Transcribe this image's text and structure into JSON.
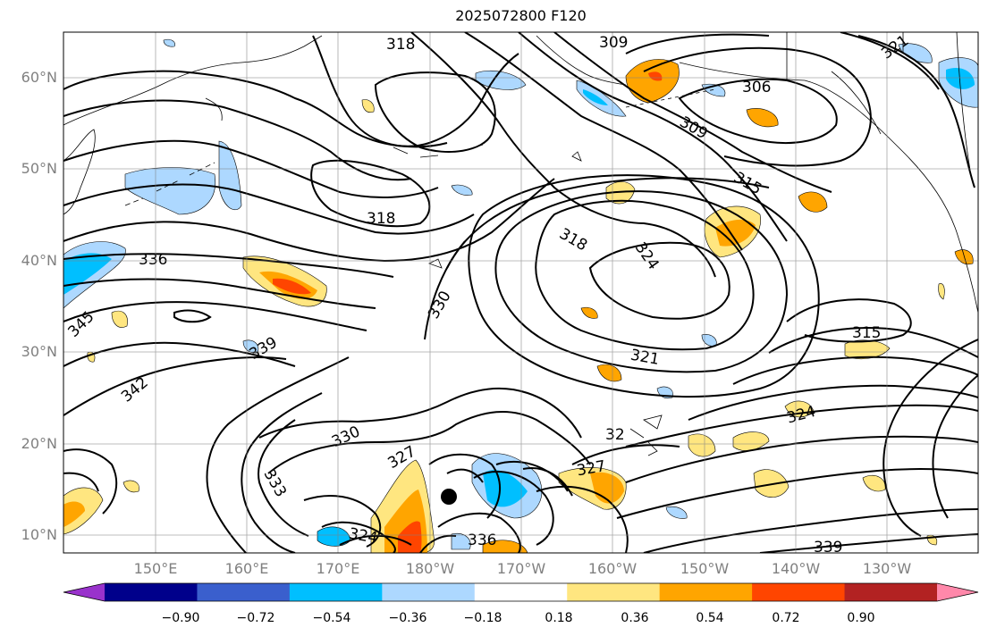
{
  "title": "2025072800 F120",
  "lat_labels": [
    "60°N",
    "50°N",
    "40°N",
    "30°N",
    "20°N",
    "10°N"
  ],
  "lon_labels": [
    "150°E",
    "160°E",
    "170°E",
    "180°W",
    "170°W",
    "160°W",
    "150°W",
    "140°W",
    "130°W"
  ],
  "colorbar": {
    "ticks": [
      "−0.90",
      "−0.72",
      "−0.54",
      "−0.36",
      "−0.18",
      "0.18",
      "0.36",
      "0.54",
      "0.72",
      "0.90"
    ],
    "colors": [
      "#9932cc",
      "#00008b",
      "#3a5fcd",
      "#00bfff",
      "#add8ff",
      "#ffffff",
      "#ffe680",
      "#ffa500",
      "#ff4500",
      "#b22222",
      "#ff88aa"
    ]
  },
  "contour_labels": [
    "318",
    "309",
    "321",
    "306",
    "309",
    "315",
    "318",
    "318",
    "324",
    "336",
    "330",
    "345",
    "339",
    "342",
    "321",
    "315",
    "324",
    "330",
    "327",
    "333",
    "327",
    "324",
    "336",
    "339",
    "32"
  ],
  "marker_icon": "filled-circle-marker"
}
